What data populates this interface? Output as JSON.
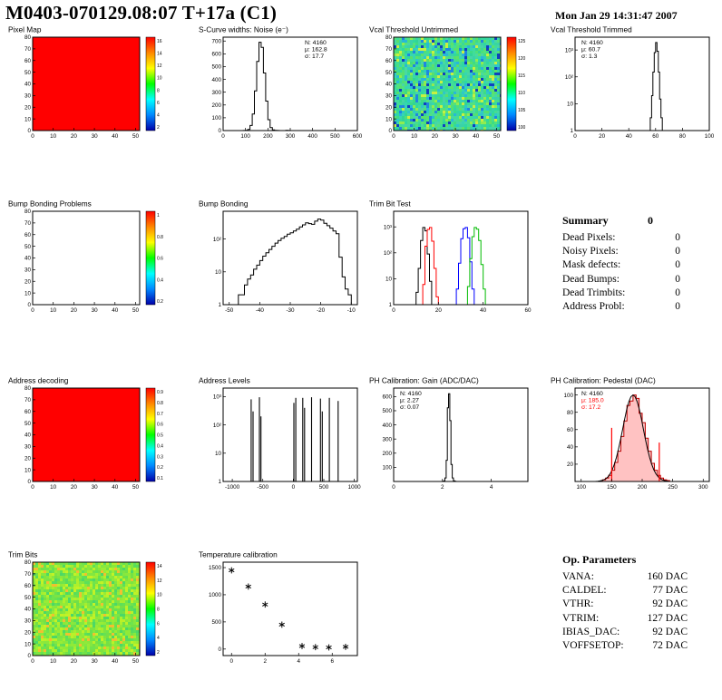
{
  "header": {
    "title": "M0403-070129.08:07 T+17a (C1)",
    "timestamp": "Mon Jan 29 14:31:47 2007"
  },
  "summary": {
    "title": "Summary",
    "header_value": "0",
    "rows": [
      [
        "Dead Pixels:",
        "0"
      ],
      [
        "Noisy Pixels:",
        "0"
      ],
      [
        "Mask defects:",
        "0"
      ],
      [
        "Dead Bumps:",
        "0"
      ],
      [
        "Dead Trimbits:",
        "0"
      ],
      [
        "Address Probl:",
        "0"
      ]
    ]
  },
  "op_parameters": {
    "title": "Op. Parameters",
    "rows": [
      [
        "VANA:",
        "160 DAC"
      ],
      [
        "CALDEL:",
        "77 DAC"
      ],
      [
        "VTHR:",
        "92 DAC"
      ],
      [
        "VTRIM:",
        "127 DAC"
      ],
      [
        "IBIAS_DAC:",
        "92 DAC"
      ],
      [
        "VOFFSETOP:",
        "72 DAC"
      ]
    ]
  },
  "chart_data": [
    {
      "id": "pixel-map",
      "type": "heatmap",
      "title": "Pixel Map",
      "xmin": 0,
      "xmax": 52,
      "ymin": 0,
      "ymax": 80,
      "xticks": [
        0,
        10,
        20,
        30,
        40,
        50
      ],
      "yticks": [
        0,
        10,
        20,
        30,
        40,
        50,
        60,
        70,
        80
      ],
      "fill": "solid",
      "color": "#ff0000",
      "colorbar": {
        "colors": [
          "#ff0000",
          "#ff8800",
          "#ffff00",
          "#00ff00",
          "#00ffff",
          "#0088ff",
          "#0000aa"
        ],
        "labels": [
          "16",
          "14",
          "12",
          "10",
          "8",
          "6",
          "4",
          "2"
        ]
      }
    },
    {
      "id": "scurve-noise",
      "type": "hist",
      "title": "S-Curve widths: Noise (e⁻)",
      "xmin": 0,
      "xmax": 600,
      "ymin": 0,
      "ymax": 730,
      "xticks": [
        0,
        100,
        200,
        300,
        400,
        500,
        600
      ],
      "yticks": [
        0,
        100,
        200,
        300,
        400,
        500,
        600,
        700
      ],
      "binw": 10,
      "bins": [
        [
          90,
          1
        ],
        [
          100,
          2
        ],
        [
          110,
          9
        ],
        [
          120,
          40
        ],
        [
          130,
          130
        ],
        [
          140,
          310
        ],
        [
          150,
          540
        ],
        [
          160,
          690
        ],
        [
          170,
          650
        ],
        [
          180,
          450
        ],
        [
          190,
          230
        ],
        [
          200,
          85
        ],
        [
          210,
          23
        ],
        [
          220,
          6
        ],
        [
          230,
          2
        ],
        [
          240,
          1
        ],
        [
          250,
          0
        ],
        [
          260,
          0
        ],
        [
          270,
          0
        ],
        [
          280,
          2
        ],
        [
          290,
          1
        ]
      ],
      "stats": {
        "pos": "right",
        "lines": [
          {
            "t": "N: 4160"
          },
          {
            "t": "μ: 162.8"
          },
          {
            "t": "σ: 17.7"
          }
        ]
      }
    },
    {
      "id": "vcal-untrimmed",
      "type": "heatmap",
      "title": "Vcal Threshold Untrimmed",
      "xmin": 0,
      "xmax": 52,
      "ymin": 0,
      "ymax": 80,
      "xticks": [
        0,
        10,
        20,
        30,
        40,
        50
      ],
      "yticks": [
        0,
        10,
        20,
        30,
        40,
        50,
        60,
        70,
        80
      ],
      "fill": "noise",
      "seed": 20070129,
      "palette": [
        "#3ddc84",
        "#2fd9a0",
        "#4de07a",
        "#36d6b2",
        "#57e06c",
        "#2ec8c8",
        "#45dd90",
        "#3bd2a8",
        "#52e27e",
        "#30d596",
        "#49d9a2",
        "#5ce26a",
        "#28b8d8",
        "#1f86e0",
        "#1040c0",
        "#90ec50",
        "#c8f040",
        "#40dd9a",
        "#38d89c",
        "#46d6a6"
      ],
      "colorbar": {
        "colors": [
          "#ff0000",
          "#ff8800",
          "#ffff00",
          "#00ff00",
          "#00ffff",
          "#0088ff",
          "#0000aa"
        ],
        "labels": [
          "125",
          "120",
          "115",
          "110",
          "105",
          "100"
        ]
      }
    },
    {
      "id": "vcal-trimmed",
      "type": "hist",
      "title": "Vcal Threshold Trimmed",
      "ylog": true,
      "xmin": 0,
      "xmax": 100,
      "ymin": 1,
      "ymax": 3000,
      "xticks": [
        0,
        20,
        40,
        60,
        80,
        100
      ],
      "binw": 1,
      "bins": [
        [
          55,
          1
        ],
        [
          56,
          3
        ],
        [
          57,
          20
        ],
        [
          58,
          150
        ],
        [
          59,
          800
        ],
        [
          60,
          1900
        ],
        [
          61,
          900
        ],
        [
          62,
          150
        ],
        [
          63,
          15
        ],
        [
          64,
          3
        ],
        [
          65,
          1
        ]
      ],
      "stats": {
        "pos": "left",
        "lines": [
          {
            "t": "N: 4160"
          },
          {
            "t": "μ: 60.7"
          },
          {
            "t": "σ: 1.3"
          }
        ]
      }
    },
    {
      "id": "bump-problems",
      "type": "heatmap",
      "title": "Bump Bonding Problems",
      "xmin": 0,
      "xmax": 52,
      "ymin": 0,
      "ymax": 80,
      "xticks": [
        0,
        10,
        20,
        30,
        40,
        50
      ],
      "yticks": [
        0,
        10,
        20,
        30,
        40,
        50,
        60,
        70,
        80
      ],
      "fill": "none",
      "colorbar": {
        "colors": [
          "#ff0000",
          "#ff8800",
          "#ffff00",
          "#00ff00",
          "#00ffff",
          "#0088ff",
          "#0000aa"
        ],
        "labels": [
          "1",
          "0.8",
          "0.6",
          "0.4",
          "0.2"
        ]
      }
    },
    {
      "id": "bump-bonding",
      "type": "hist",
      "title": "Bump Bonding",
      "ylog": true,
      "xmin": -52,
      "xmax": -8,
      "ymin": 1,
      "ymax": 700,
      "xticks": [
        -50,
        -40,
        -30,
        -20,
        -10
      ],
      "binw": 1,
      "bins": [
        [
          -48,
          1
        ],
        [
          -47,
          2
        ],
        [
          -46,
          2
        ],
        [
          -45,
          4
        ],
        [
          -44,
          6
        ],
        [
          -43,
          8
        ],
        [
          -42,
          12
        ],
        [
          -41,
          16
        ],
        [
          -40,
          22
        ],
        [
          -39,
          30
        ],
        [
          -38,
          38
        ],
        [
          -37,
          48
        ],
        [
          -36,
          60
        ],
        [
          -35,
          75
        ],
        [
          -34,
          90
        ],
        [
          -33,
          105
        ],
        [
          -32,
          120
        ],
        [
          -31,
          140
        ],
        [
          -30,
          155
        ],
        [
          -29,
          175
        ],
        [
          -28,
          200
        ],
        [
          -27,
          235
        ],
        [
          -26,
          270
        ],
        [
          -25,
          310
        ],
        [
          -24,
          295
        ],
        [
          -23,
          280
        ],
        [
          -22,
          350
        ],
        [
          -21,
          405
        ],
        [
          -20,
          375
        ],
        [
          -19,
          300
        ],
        [
          -18,
          255
        ],
        [
          -17,
          215
        ],
        [
          -16,
          175
        ],
        [
          -15,
          145
        ],
        [
          -14,
          28
        ],
        [
          -13,
          7
        ],
        [
          -12,
          3
        ],
        [
          -11,
          2
        ]
      ]
    },
    {
      "id": "trim-bit-test",
      "type": "multihist",
      "title": "Trim Bit Test",
      "ylog": true,
      "xmin": 0,
      "xmax": 60,
      "ymin": 1,
      "ymax": 4000,
      "xticks": [
        0,
        20,
        40,
        60
      ],
      "binw": 1,
      "series": [
        {
          "name": "trim-bit-0",
          "color": "#000000",
          "bins": [
            [
              9,
              1
            ],
            [
              10,
              3
            ],
            [
              11,
              25
            ],
            [
              12,
              300
            ],
            [
              13,
              950
            ],
            [
              14,
              700
            ],
            [
              15,
              90
            ],
            [
              16,
              8
            ],
            [
              17,
              1
            ]
          ]
        },
        {
          "name": "trim-bit-1",
          "color": "#ff0000",
          "bins": [
            [
              12,
              1
            ],
            [
              13,
              6
            ],
            [
              14,
              180
            ],
            [
              15,
              800
            ],
            [
              16,
              950
            ],
            [
              17,
              280
            ],
            [
              18,
              25
            ],
            [
              19,
              2
            ]
          ]
        },
        {
          "name": "trim-bit-2",
          "color": "#0000ff",
          "bins": [
            [
              27,
              1
            ],
            [
              28,
              4
            ],
            [
              29,
              40
            ],
            [
              30,
              350
            ],
            [
              31,
              850
            ],
            [
              32,
              950
            ],
            [
              33,
              380
            ],
            [
              34,
              45
            ],
            [
              35,
              4
            ]
          ]
        },
        {
          "name": "trim-bit-3",
          "color": "#00bb00",
          "bins": [
            [
              32,
              1
            ],
            [
              33,
              5
            ],
            [
              34,
              60
            ],
            [
              35,
              420
            ],
            [
              36,
              950
            ],
            [
              37,
              820
            ],
            [
              38,
              300
            ],
            [
              39,
              35
            ],
            [
              40,
              4
            ],
            [
              41,
              1
            ],
            [
              42,
              0
            ],
            [
              59,
              0
            ]
          ]
        }
      ]
    },
    {
      "id": "address-decoding",
      "type": "heatmap",
      "title": "Address decoding",
      "xmin": 0,
      "xmax": 52,
      "ymin": 0,
      "ymax": 80,
      "xticks": [
        0,
        10,
        20,
        30,
        40,
        50
      ],
      "yticks": [
        0,
        10,
        20,
        30,
        40,
        50,
        60,
        70,
        80
      ],
      "fill": "solid",
      "color": "#ff0000",
      "colorbar": {
        "colors": [
          "#ff0000",
          "#ff8800",
          "#ffff00",
          "#00ff00",
          "#00ffff",
          "#0088ff",
          "#0000aa"
        ],
        "labels": [
          "0.9",
          "0.8",
          "0.7",
          "0.6",
          "0.5",
          "0.4",
          "0.3",
          "0.2",
          "0.1"
        ]
      }
    },
    {
      "id": "address-levels",
      "type": "spikes",
      "title": "Address Levels",
      "ylog": true,
      "xmin": -1150,
      "xmax": 1050,
      "ymin": 1,
      "ymax": 2000,
      "xticks": [
        -1000,
        -500,
        0,
        500,
        1000
      ],
      "spikes": [
        [
          -690,
          800
        ],
        [
          -660,
          300
        ],
        [
          -555,
          950
        ],
        [
          -530,
          200
        ],
        [
          10,
          600
        ],
        [
          40,
          900
        ],
        [
          155,
          900
        ],
        [
          185,
          400
        ],
        [
          300,
          950
        ],
        [
          445,
          850
        ],
        [
          475,
          300
        ],
        [
          590,
          900
        ],
        [
          735,
          700
        ]
      ]
    },
    {
      "id": "ph-gain",
      "type": "hist",
      "title": "PH Calibration: Gain (ADC/DAC)",
      "xmin": 0,
      "xmax": 5.5,
      "ymin": 0,
      "ymax": 660,
      "xticks": [
        0,
        2,
        4
      ],
      "yticks": [
        100,
        200,
        300,
        400,
        500,
        600
      ],
      "binw": 0.05,
      "bins": [
        [
          2.0,
          1
        ],
        [
          2.05,
          4
        ],
        [
          2.1,
          25
        ],
        [
          2.15,
          150
        ],
        [
          2.2,
          520
        ],
        [
          2.25,
          620
        ],
        [
          2.3,
          430
        ],
        [
          2.35,
          120
        ],
        [
          2.4,
          25
        ],
        [
          2.45,
          5
        ],
        [
          2.5,
          1
        ]
      ],
      "stats": {
        "pos": "left",
        "lines": [
          {
            "t": "N: 4160"
          },
          {
            "t": "μ: 2.27"
          },
          {
            "t": "σ: 0.07"
          }
        ]
      }
    },
    {
      "id": "ph-pedestal",
      "type": "hist",
      "title": "PH Calibration: Pedestal (DAC)",
      "xmin": 90,
      "xmax": 310,
      "ymin": 0,
      "ymax": 108,
      "xticks": [
        100,
        150,
        200,
        250,
        300
      ],
      "yticks": [
        20,
        40,
        60,
        80,
        100
      ],
      "binw": 5,
      "fill": "rgba(255,80,80,0.35)",
      "lineColor": "#bb0000",
      "bins": [
        [
          135,
          2
        ],
        [
          140,
          4
        ],
        [
          145,
          7
        ],
        [
          150,
          13
        ],
        [
          155,
          22
        ],
        [
          160,
          35
        ],
        [
          165,
          52
        ],
        [
          170,
          70
        ],
        [
          175,
          88
        ],
        [
          180,
          93
        ],
        [
          185,
          100
        ],
        [
          190,
          96
        ],
        [
          195,
          79
        ],
        [
          200,
          68
        ],
        [
          205,
          50
        ],
        [
          210,
          35
        ],
        [
          215,
          21
        ],
        [
          220,
          13
        ],
        [
          225,
          7
        ],
        [
          230,
          4
        ],
        [
          235,
          2
        ],
        [
          240,
          1
        ]
      ],
      "curve": {
        "amp": 100,
        "mean": 185,
        "sigma": 17,
        "color": "#000000"
      },
      "cuts": [
        {
          "x": 150,
          "h": 62,
          "color": "#ff0000"
        },
        {
          "x": 228,
          "h": 45,
          "color": "#ff0000"
        }
      ],
      "stats": {
        "pos": "left",
        "lines": [
          {
            "t": "N: 4160",
            "c": "#000000"
          },
          {
            "t": "μ: 185.0",
            "c": "#ff0000"
          },
          {
            "t": "σ: 17.2",
            "c": "#ff0000"
          }
        ]
      }
    },
    {
      "id": "trim-bits",
      "type": "heatmap",
      "title": "Trim Bits",
      "xmin": 0,
      "xmax": 52,
      "ymin": 0,
      "ymax": 80,
      "xticks": [
        0,
        10,
        20,
        30,
        40,
        50
      ],
      "yticks": [
        0,
        10,
        20,
        30,
        40,
        50,
        60,
        70,
        80
      ],
      "fill": "noise",
      "seed": 777777,
      "palette": [
        "#5ce05a",
        "#6fe44c",
        "#83e840",
        "#98ec36",
        "#aef02c",
        "#c2f226",
        "#74e046",
        "#8ae83c",
        "#66e250",
        "#a4ee30",
        "#baf128",
        "#58dc5c",
        "#f0c030",
        "#4cd866",
        "#7de442",
        "#90ea38"
      ],
      "colorbar": {
        "colors": [
          "#ff0000",
          "#ff8800",
          "#ffff00",
          "#00ff00",
          "#00ffff",
          "#0088ff",
          "#0000aa"
        ],
        "labels": [
          "14",
          "12",
          "10",
          "8",
          "6",
          "4",
          "2"
        ]
      }
    },
    {
      "id": "temperature-calibration",
      "type": "scatter",
      "title": "Temperature calibration",
      "xmin": -0.5,
      "xmax": 7.5,
      "ymin": -120,
      "ymax": 1600,
      "xticks": [
        0,
        2,
        4,
        6
      ],
      "yticks": [
        0,
        500,
        1000,
        1500
      ],
      "marker": "asterisk",
      "points": [
        [
          0,
          1450
        ],
        [
          1,
          1150
        ],
        [
          2,
          820
        ],
        [
          3,
          450
        ],
        [
          4.2,
          55
        ],
        [
          5,
          35
        ],
        [
          5.8,
          30
        ],
        [
          6.8,
          40
        ]
      ]
    }
  ]
}
